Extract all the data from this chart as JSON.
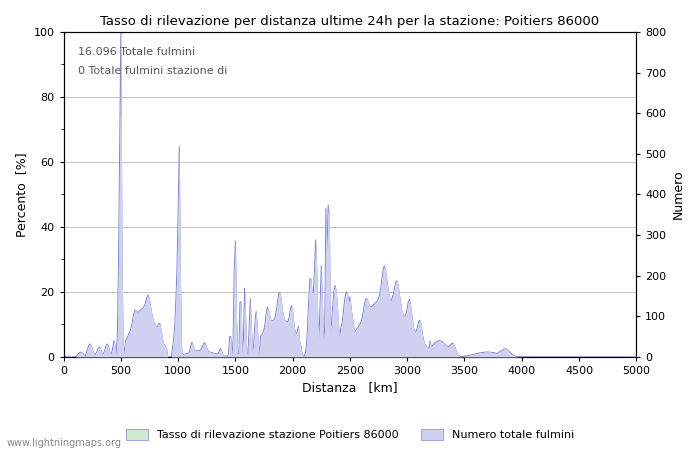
{
  "title": "Tasso di rilevazione per distanza ultime 24h per la stazione: Poitiers 86000",
  "xlabel": "Distanza   [km]",
  "ylabel_left": "Percento  [%]",
  "ylabel_right": "Numero",
  "annotation_line1": "16.096 Totale fulmini",
  "annotation_line2": "0 Totale fulmini stazione di",
  "xlim": [
    0,
    5000
  ],
  "ylim_left": [
    0,
    100
  ],
  "ylim_right": [
    0,
    800
  ],
  "yticks_left": [
    0,
    20,
    40,
    60,
    80,
    100
  ],
  "yticks_right": [
    0,
    100,
    200,
    300,
    400,
    500,
    600,
    700,
    800
  ],
  "xticks": [
    0,
    500,
    1000,
    1500,
    2000,
    2500,
    3000,
    3500,
    4000,
    4500,
    5000
  ],
  "line_color": "#8080cc",
  "fill_color_percent": "#d0e8d0",
  "fill_color_number": "#d0d0f0",
  "grid_color": "#bbbbbb",
  "legend_label_green": "Tasso di rilevazione stazione Poitiers 86000",
  "legend_label_blue": "Numero totale fulmini",
  "watermark": "www.lightningmaps.org",
  "bg_color": "#ffffff",
  "figsize": [
    7.0,
    4.5
  ],
  "dpi": 100
}
